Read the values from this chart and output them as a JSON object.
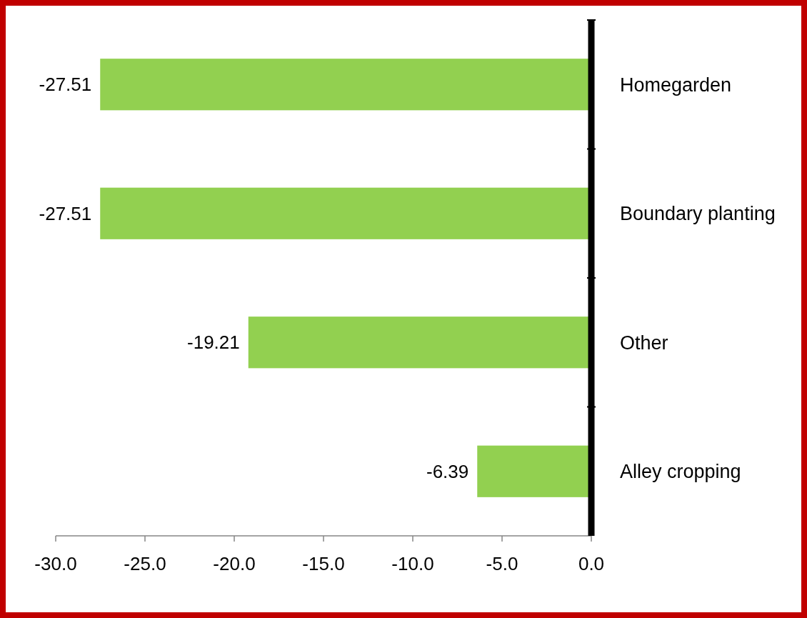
{
  "chart_data": {
    "type": "bar",
    "orientation": "horizontal",
    "categories": [
      "Homegarden",
      "Boundary planting",
      "Other",
      "Alley cropping"
    ],
    "values": [
      -27.51,
      -27.51,
      -19.21,
      -6.39
    ],
    "color": "#92d050",
    "data_labels": true,
    "xlim": [
      -30,
      0
    ],
    "xticks": [
      {
        "value": -30,
        "label": "-30.0"
      },
      {
        "value": -25,
        "label": "-25.0"
      },
      {
        "value": -20,
        "label": "-20.0"
      },
      {
        "value": -15,
        "label": "-15.0"
      },
      {
        "value": -10,
        "label": "-10.0"
      },
      {
        "value": -5,
        "label": "-5.0"
      },
      {
        "value": 0,
        "label": "0.0"
      }
    ],
    "grid": false
  }
}
